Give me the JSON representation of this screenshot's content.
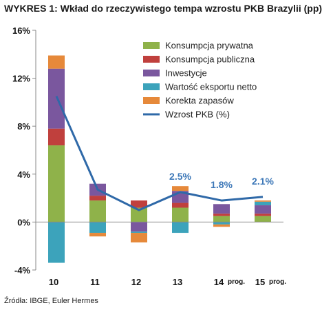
{
  "title": "WYKRES 1: Wkład do rzeczywistego tempa wzrostu PKB Brazylii (pp)",
  "source": "Źródła: IBGE, Euler Hermes",
  "colors": {
    "Konsumpcja prywatna": "#8fb24a",
    "Konsumpcja publiczna": "#c0403d",
    "Inwestycje": "#7a579e",
    "Wartość eksportu netto": "#3ca3bb",
    "Korekta zapasów": "#e6893a",
    "Wzrost PKB (%)": "#2f69a8"
  },
  "chart_data": {
    "type": "bar",
    "stacked": true,
    "categories": [
      "10",
      "11",
      "12",
      "13",
      "14",
      "15"
    ],
    "category_suffixes": [
      "",
      "",
      "",
      "",
      "prog.",
      "prog."
    ],
    "series": [
      {
        "name": "Konsumpcja prywatna",
        "values": [
          6.4,
          1.8,
          1.2,
          1.2,
          0.5,
          0.5
        ]
      },
      {
        "name": "Konsumpcja publiczna",
        "values": [
          1.4,
          0.4,
          0.6,
          0.4,
          0.2,
          0.2
        ]
      },
      {
        "name": "Inwestycje",
        "values": [
          5.0,
          1.0,
          -0.8,
          1.0,
          0.8,
          0.7
        ]
      },
      {
        "name": "Wartość eksportu netto",
        "values": [
          -3.4,
          -0.9,
          -0.1,
          -0.9,
          -0.2,
          0.3
        ]
      },
      {
        "name": "Korekta zapasów",
        "values": [
          1.1,
          -0.3,
          -0.8,
          0.4,
          -0.2,
          0.1
        ]
      }
    ],
    "line": {
      "name": "Wzrost PKB (%)",
      "values": [
        10.5,
        2.7,
        1.0,
        2.5,
        1.8,
        2.1
      ]
    },
    "annotations": [
      {
        "category": "13",
        "text": "2.5%"
      },
      {
        "category": "14",
        "text": "1.8%"
      },
      {
        "category": "15",
        "text": "2.1%"
      }
    ],
    "ylim": [
      -4,
      16
    ],
    "yticks": [
      -4,
      0,
      4,
      8,
      12,
      16
    ],
    "ytick_labels": [
      "-4%",
      "0%",
      "4%",
      "8%",
      "12%",
      "16%"
    ],
    "xlabel": "",
    "ylabel": "",
    "legend_position": "top-right",
    "grid": false
  }
}
